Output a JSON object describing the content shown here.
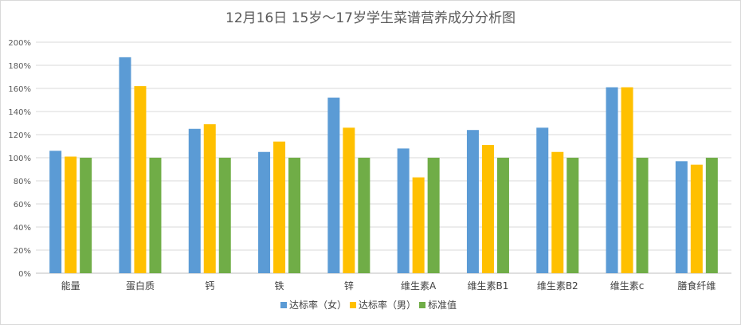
{
  "chart_data": {
    "type": "bar",
    "title": "12月16日 15岁～17岁学生菜谱营养成分分析图",
    "categories": [
      "能量",
      "蛋白质",
      "钙",
      "铁",
      "锌",
      "维生素A",
      "维生素B1",
      "维生素B2",
      "维生素c",
      "膳食纤维"
    ],
    "series": [
      {
        "name": "达标率（女）",
        "color": "#5b9bd5",
        "values": [
          106,
          187,
          125,
          105,
          152,
          108,
          124,
          126,
          161,
          97
        ]
      },
      {
        "name": "达标率（男）",
        "color": "#ffc000",
        "values": [
          101,
          162,
          129,
          114,
          126,
          83,
          111,
          105,
          161,
          94
        ]
      },
      {
        "name": "标准值",
        "color": "#70ad47",
        "values": [
          100,
          100,
          100,
          100,
          100,
          100,
          100,
          100,
          100,
          100
        ]
      }
    ],
    "ylim": [
      0,
      200
    ],
    "y_ticks": [
      "0%",
      "20%",
      "40%",
      "60%",
      "80%",
      "100%",
      "120%",
      "140%",
      "160%",
      "180%",
      "200%"
    ],
    "grid": true,
    "legend_position": "bottom"
  }
}
